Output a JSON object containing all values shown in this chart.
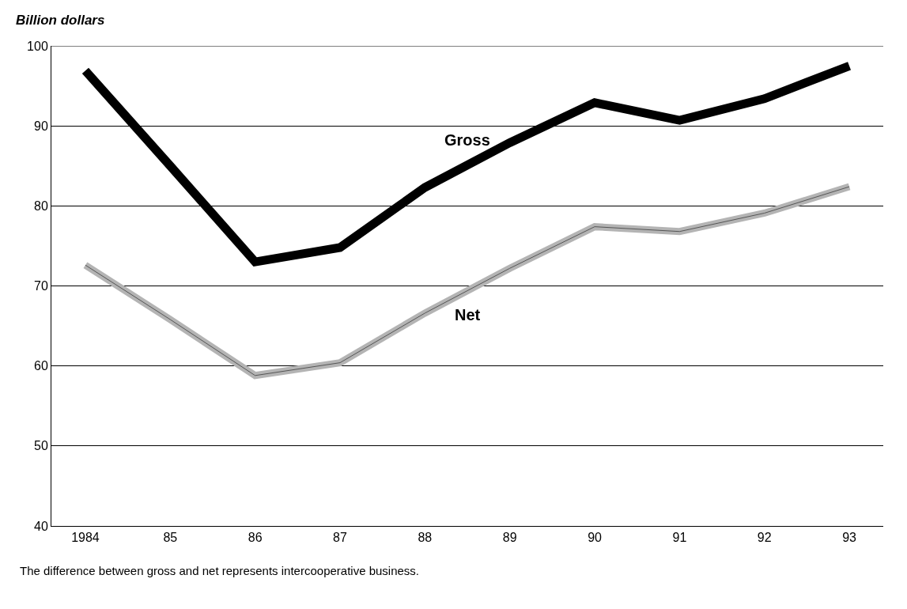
{
  "chart_data": {
    "type": "line",
    "ylabel": "Billion dollars",
    "categories": [
      "1984",
      "85",
      "86",
      "87",
      "88",
      "89",
      "90",
      "91",
      "92",
      "93"
    ],
    "series": [
      {
        "name": "Gross",
        "color": "#000000",
        "values": [
          96.9,
          85,
          73.0,
          74.8,
          82.3,
          87.9,
          92.9,
          90.7,
          93.4,
          97.5
        ]
      },
      {
        "name": "Net",
        "color": "#b4b4b4",
        "values": [
          72.6,
          65.8,
          58.8,
          60.4,
          66.6,
          72.2,
          77.4,
          76.8,
          79.1,
          82.4
        ]
      }
    ],
    "ylim": [
      40,
      100
    ],
    "yticks": [
      40,
      50,
      60,
      70,
      80,
      90,
      100
    ],
    "grid": "y",
    "legend": false,
    "marker": "none",
    "line_style": "solid",
    "annotations": [
      "The difference between gross and net represents intercooperative business."
    ]
  }
}
